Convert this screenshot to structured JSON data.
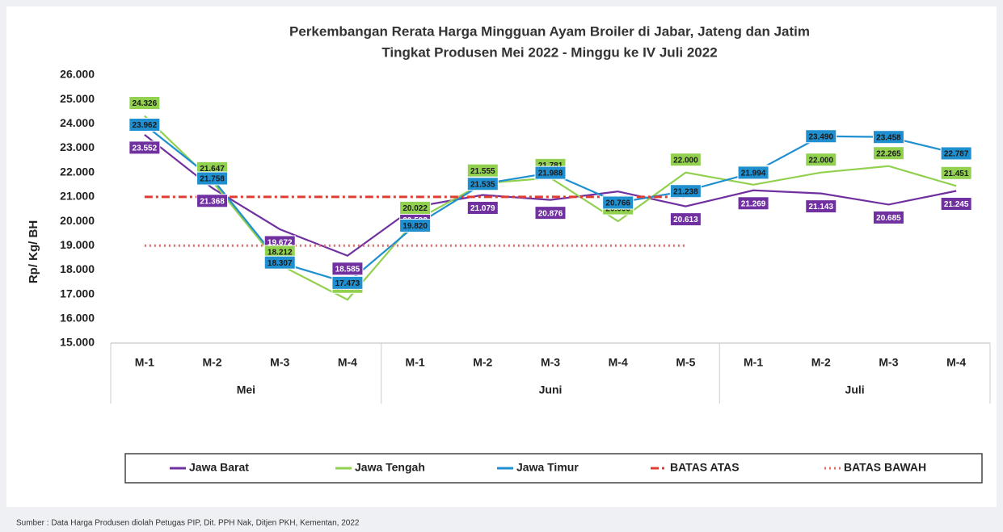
{
  "chart_data": {
    "type": "line",
    "title": "Perkembangan Rerata Harga Mingguan Ayam Broiler di Jabar, Jateng dan Jatim",
    "subtitle": "Tingkat Produsen Mei 2022 -  Minggu ke IV Juli 2022",
    "y_label": "Rp/ Kg/ BH",
    "source": "Sumber :   Data Harga Produsen diolah Petugas PIP, Dit. PPH Nak, Ditjen PKH, Kementan, 2022",
    "groups": [
      {
        "name": "Mei",
        "categories": [
          "M-1",
          "M-2",
          "M-3",
          "M-4"
        ]
      },
      {
        "name": "Juni",
        "categories": [
          "M-1",
          "M-2",
          "M-3",
          "M-4",
          "M-5"
        ]
      },
      {
        "name": "Juli",
        "categories": [
          "M-1",
          "M-2",
          "M-3",
          "M-4"
        ]
      }
    ],
    "ylim": [
      15000,
      26000
    ],
    "yticks": [
      {
        "value": 15000,
        "label": "15.000"
      },
      {
        "value": 16000,
        "label": "16.000"
      },
      {
        "value": 17000,
        "label": "17.000"
      },
      {
        "value": 18000,
        "label": "18.000"
      },
      {
        "value": 19000,
        "label": "19.000"
      },
      {
        "value": 20000,
        "label": "20.000"
      },
      {
        "value": 21000,
        "label": "21.000"
      },
      {
        "value": 22000,
        "label": "22.000"
      },
      {
        "value": 23000,
        "label": "23.000"
      },
      {
        "value": 24000,
        "label": "24.000"
      },
      {
        "value": 25000,
        "label": "25.000"
      },
      {
        "value": 26000,
        "label": "26.000"
      }
    ],
    "grid": false,
    "series": [
      {
        "name": "Jawa Barat",
        "color": "#7030a0",
        "values": [
          23552,
          21368,
          19672,
          18585,
          20592,
          21079,
          20876,
          21223,
          20613,
          21269,
          21143,
          20685,
          21245
        ],
        "value_labels": [
          "23.552",
          "21.368",
          "19.672",
          "18.585",
          "20.592",
          "21.079",
          "20.876",
          "21.223",
          "20.613",
          "21.269",
          "21.143",
          "20.685",
          "21.245"
        ]
      },
      {
        "name": "Jawa Tengah",
        "color": "#92d050",
        "values": [
          24326,
          21647,
          18212,
          16781,
          20022,
          21555,
          21781,
          20000,
          22000,
          21500,
          22000,
          22265,
          21451
        ],
        "value_labels": [
          "24.326",
          "21.647",
          "18.212",
          "16.781",
          "20.022",
          "21.555",
          "21.781",
          "20.000",
          "22.000",
          "21.500",
          "22.000",
          "22.265",
          "21.451"
        ]
      },
      {
        "name": "Jawa Timur",
        "color": "#1f8fd0",
        "values": [
          23962,
          21758,
          18307,
          17473,
          19820,
          21535,
          21988,
          20766,
          21238,
          21994,
          23490,
          23458,
          22787
        ],
        "value_labels": [
          "23.962",
          "21.758",
          "18.307",
          "17.473",
          "19.820",
          "21.535",
          "21.988",
          "20.766",
          "21.238",
          "21.994",
          "23.490",
          "23.458",
          "22.787"
        ]
      },
      {
        "name": "BATAS ATAS",
        "color": "#e03c31",
        "dash": "dash-dot",
        "values": [
          21000,
          21000,
          21000,
          21000,
          21000,
          21000,
          21000,
          21000,
          21000,
          null,
          null,
          null,
          null
        ]
      },
      {
        "name": "BATAS BAWAH",
        "color": "#e06a6a",
        "dash": "dot",
        "values": [
          19000,
          19000,
          19000,
          19000,
          19000,
          19000,
          19000,
          19000,
          19000,
          null,
          null,
          null,
          null
        ]
      }
    ]
  }
}
